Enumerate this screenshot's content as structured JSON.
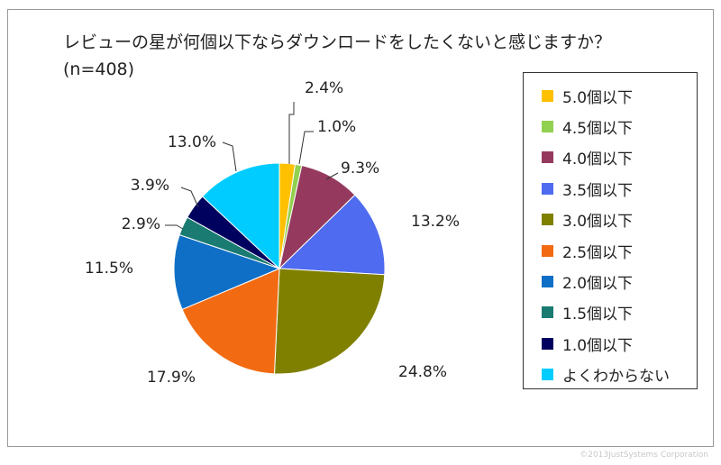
{
  "title": "レビューの星が何個以下ならダウンロードをしたくないと感じますか？(n=408)",
  "watermark": "©2013JustSystems Corporation",
  "chart_data": {
    "type": "pie",
    "title": "レビューの星が何個以下ならダウンロードをしたくないと感じますか？(n=408)",
    "slices": [
      {
        "label": "5.0個以下",
        "value": 2.4,
        "display": "2.4%",
        "color": "#FFC000"
      },
      {
        "label": "4.5個以下",
        "value": 1.0,
        "display": "1.0%",
        "color": "#92D050"
      },
      {
        "label": "4.0個以下",
        "value": 9.3,
        "display": "9.3%",
        "color": "#953A5E"
      },
      {
        "label": "3.5個以下",
        "value": 13.2,
        "display": "13.2%",
        "color": "#4F6BF0"
      },
      {
        "label": "3.0個以下",
        "value": 24.8,
        "display": "24.8%",
        "color": "#808000"
      },
      {
        "label": "2.5個以下",
        "value": 17.9,
        "display": "17.9%",
        "color": "#F26B12"
      },
      {
        "label": "2.0個以下",
        "value": 11.5,
        "display": "11.5%",
        "color": "#0F6FC6"
      },
      {
        "label": "1.5個以下",
        "value": 2.9,
        "display": "2.9%",
        "color": "#1A7B72"
      },
      {
        "label": "1.0個以下",
        "value": 3.9,
        "display": "3.9%",
        "color": "#00005E"
      },
      {
        "label": "よくわからない",
        "value": 13.0,
        "display": "13.0%",
        "color": "#00CCFF"
      }
    ],
    "legend_position": "right"
  }
}
